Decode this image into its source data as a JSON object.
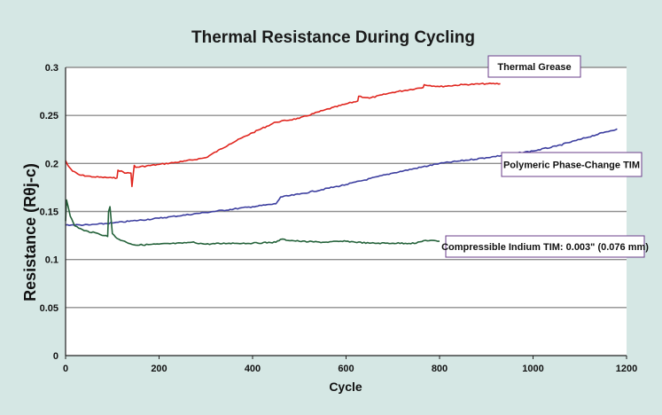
{
  "chart_data": {
    "type": "line",
    "title": "Thermal Resistance During Cycling",
    "xlabel": "Cycle",
    "ylabel": "Resistance (Rθj-c)",
    "xlim": [
      0,
      1200
    ],
    "ylim": [
      0,
      0.3
    ],
    "xticks": [
      "0",
      "200",
      "400",
      "600",
      "800",
      "1000",
      "1200"
    ],
    "yticks": [
      "0",
      "0.05",
      "0.1",
      "0.15",
      "0.2",
      "0.25",
      "0.3"
    ],
    "grid": true,
    "series": [
      {
        "name": "Thermal Grease",
        "color": "#e0261f",
        "x": [
          0,
          5,
          15,
          30,
          60,
          100,
          110,
          112,
          130,
          140,
          142,
          145,
          147,
          150,
          200,
          250,
          300,
          350,
          400,
          450,
          500,
          550,
          600,
          625,
          627,
          650,
          700,
          750,
          765,
          767,
          800,
          850,
          900,
          930
        ],
        "y": [
          0.203,
          0.198,
          0.192,
          0.188,
          0.186,
          0.185,
          0.185,
          0.193,
          0.19,
          0.19,
          0.176,
          0.19,
          0.198,
          0.196,
          0.199,
          0.202,
          0.206,
          0.22,
          0.232,
          0.243,
          0.247,
          0.255,
          0.262,
          0.265,
          0.27,
          0.268,
          0.274,
          0.278,
          0.279,
          0.282,
          0.28,
          0.282,
          0.283,
          0.283
        ]
      },
      {
        "name": "Polymeric Phase-Change TIM",
        "color": "#3c3e9f",
        "x": [
          0,
          50,
          100,
          200,
          300,
          400,
          450,
          460,
          500,
          600,
          700,
          800,
          900,
          1000,
          1050,
          1100,
          1150,
          1180
        ],
        "y": [
          0.136,
          0.136,
          0.138,
          0.143,
          0.149,
          0.155,
          0.158,
          0.165,
          0.168,
          0.178,
          0.19,
          0.2,
          0.206,
          0.213,
          0.218,
          0.225,
          0.232,
          0.236
        ]
      },
      {
        "name": "Compressible Indium TIM: 0.003\" (0.076 mm)",
        "color": "#24623a",
        "x": [
          0,
          2,
          10,
          20,
          40,
          70,
          90,
          92,
          95,
          100,
          110,
          130,
          150,
          200,
          250,
          270,
          300,
          350,
          400,
          450,
          460,
          500,
          550,
          600,
          650,
          700,
          750,
          770,
          800
        ],
        "y": [
          0.14,
          0.162,
          0.145,
          0.135,
          0.13,
          0.127,
          0.124,
          0.15,
          0.155,
          0.127,
          0.122,
          0.118,
          0.115,
          0.116,
          0.117,
          0.118,
          0.116,
          0.117,
          0.117,
          0.118,
          0.121,
          0.119,
          0.118,
          0.119,
          0.117,
          0.117,
          0.117,
          0.12,
          0.119
        ]
      }
    ],
    "annotations": [
      {
        "text": "Thermal Grease",
        "series": 0
      },
      {
        "text": "Polymeric Phase-Change TIM",
        "series": 1
      },
      {
        "text": "Compressible Indium TIM: 0.003\" (0.076 mm)",
        "series": 2
      }
    ]
  }
}
